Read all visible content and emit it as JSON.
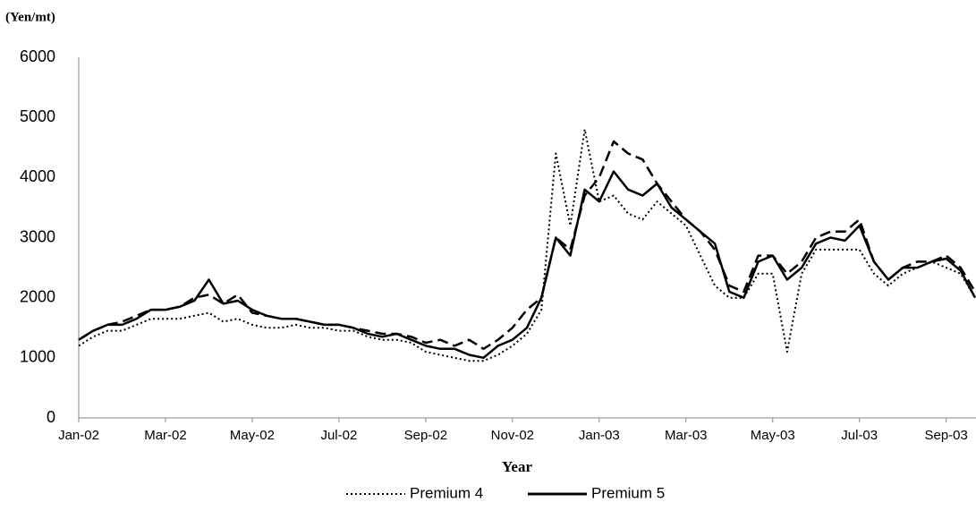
{
  "chart_data": {
    "type": "line",
    "y_unit_label": "(Yen/mt)",
    "x_label": "Year",
    "categories": [
      "Jan-02",
      null,
      null,
      null,
      null,
      null,
      "Mar-02",
      null,
      null,
      null,
      null,
      null,
      "May-02",
      null,
      null,
      null,
      null,
      null,
      "Jul-02",
      null,
      null,
      null,
      null,
      null,
      "Sep-02",
      null,
      null,
      null,
      null,
      null,
      "Nov-02",
      null,
      null,
      null,
      null,
      null,
      "Jan-03",
      null,
      null,
      null,
      null,
      null,
      "Mar-03",
      null,
      null,
      null,
      null,
      null,
      "May-03",
      null,
      null,
      null,
      null,
      null,
      "Jul-03",
      null,
      null,
      null,
      null,
      null,
      "Sep-03",
      null,
      null
    ],
    "series": [
      {
        "name": "Premium 4",
        "color": "#000000",
        "dash": "dotted",
        "values": [
          1200,
          1350,
          1450,
          1450,
          1550,
          1650,
          1650,
          1650,
          1700,
          1750,
          1600,
          1650,
          1550,
          1500,
          1500,
          1550,
          1500,
          1500,
          1450,
          1450,
          1350,
          1300,
          1300,
          1250,
          1100,
          1050,
          1000,
          950,
          950,
          1050,
          1200,
          1400,
          1800,
          4400,
          3200,
          4800,
          3600,
          3700,
          3400,
          3300,
          3600,
          3400,
          3200,
          2700,
          2200,
          2000,
          2000,
          2400,
          2400,
          1100,
          2400,
          2800,
          2800,
          2800,
          2800,
          2400,
          2200,
          2400,
          2500,
          2600,
          2500,
          2400,
          2000
        ]
      },
      {
        "name": "Premium 5",
        "color": "#000000",
        "dash": "solid",
        "values": [
          1300,
          1450,
          1550,
          1550,
          1650,
          1800,
          1800,
          1850,
          1950,
          2300,
          1900,
          1950,
          1800,
          1700,
          1650,
          1650,
          1600,
          1550,
          1550,
          1500,
          1400,
          1350,
          1400,
          1300,
          1200,
          1150,
          1150,
          1050,
          1000,
          1200,
          1300,
          1500,
          2000,
          3000,
          2700,
          3800,
          3600,
          4100,
          3800,
          3700,
          3900,
          3500,
          3300,
          3100,
          2900,
          2100,
          2000,
          2600,
          2700,
          2300,
          2500,
          2900,
          3000,
          2950,
          3200,
          2600,
          2300,
          2500,
          2500,
          2600,
          2650,
          2450,
          2000
        ]
      },
      {
        "color": "#000000",
        "dash": "dashed",
        "values": [
          1300,
          1450,
          1550,
          1600,
          1700,
          1800,
          1800,
          1850,
          2000,
          2050,
          1900,
          2050,
          1750,
          1700,
          1650,
          1650,
          1600,
          1550,
          1550,
          1500,
          1450,
          1400,
          1400,
          1350,
          1250,
          1300,
          1200,
          1300,
          1150,
          1300,
          1500,
          1800,
          2000,
          3000,
          2800,
          3700,
          4000,
          4600,
          4400,
          4300,
          3900,
          3600,
          3300,
          3100,
          2800,
          2200,
          2100,
          2700,
          2700,
          2400,
          2600,
          3000,
          3100,
          3100,
          3300,
          2600,
          2300,
          2500,
          2600,
          2600,
          2700,
          2500,
          2100
        ]
      }
    ],
    "ylim": [
      0,
      6000
    ],
    "yticks": [
      0,
      1000,
      2000,
      3000,
      4000,
      5000,
      6000
    ],
    "grid": false
  }
}
